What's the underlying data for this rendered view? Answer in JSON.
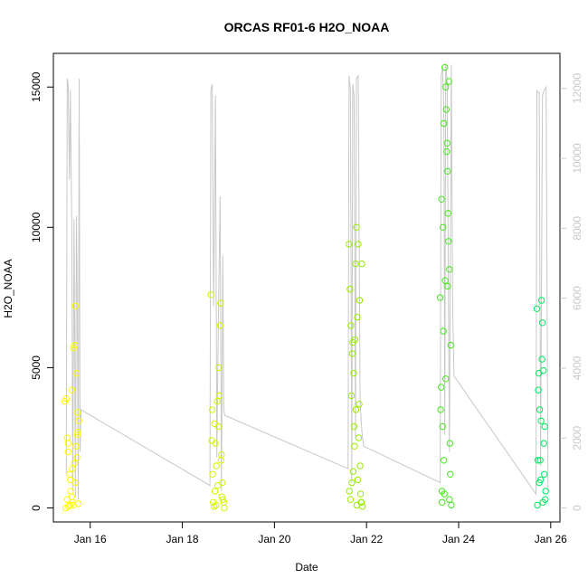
{
  "chart_data": {
    "type": "scatter",
    "title": "ORCAS RF01-6 H2O_NOAA",
    "xlabel": "Date",
    "ylabel": "H2O_NOAA",
    "xlim": [
      15.2,
      26.2
    ],
    "ylim": [
      -500,
      16200
    ],
    "ylim_right": [
      -400,
      13000
    ],
    "x_ticks": [
      {
        "value": 16,
        "label": "Jan 16"
      },
      {
        "value": 18,
        "label": "Jan 18"
      },
      {
        "value": 20,
        "label": "Jan 20"
      },
      {
        "value": 22,
        "label": "Jan 22"
      },
      {
        "value": 24,
        "label": "Jan 24"
      },
      {
        "value": 26,
        "label": "Jan 26"
      }
    ],
    "y_ticks": [
      {
        "value": 0,
        "label": "0"
      },
      {
        "value": 5000,
        "label": "5000"
      },
      {
        "value": 10000,
        "label": "10000"
      },
      {
        "value": 15000,
        "label": "15000"
      }
    ],
    "y_ticks_right": [
      {
        "value": 0,
        "label": "0"
      },
      {
        "value": 2000,
        "label": "2000"
      },
      {
        "value": 4000,
        "label": "4000"
      },
      {
        "value": 6000,
        "label": "6000"
      },
      {
        "value": 8000,
        "label": "8000"
      },
      {
        "value": 10000,
        "label": "10000"
      },
      {
        "value": 12000,
        "label": "12000"
      }
    ],
    "colors": {
      "line": "#c8c8c8",
      "flight1": "#ffff00",
      "flight2": "#d4f500",
      "flight3": "#99ec00",
      "flight4": "#44e81a",
      "flight5": "#00e860"
    },
    "line_series": {
      "name": "",
      "x": [
        15.48,
        15.5,
        15.52,
        15.55,
        15.57,
        15.6,
        15.62,
        15.65,
        15.68,
        15.7,
        15.72,
        15.74,
        15.76,
        15.78,
        15.8,
        18.6,
        18.62,
        18.65,
        18.68,
        18.72,
        18.75,
        18.78,
        18.82,
        18.85,
        18.88,
        18.9,
        18.92,
        21.6,
        21.62,
        21.65,
        21.68,
        21.7,
        21.73,
        21.76,
        21.78,
        21.82,
        21.86,
        21.9,
        21.94,
        23.6,
        23.62,
        23.65,
        23.68,
        23.7,
        23.72,
        23.75,
        23.8,
        23.84,
        23.87,
        23.9,
        25.68,
        25.7,
        25.72,
        25.75,
        25.78,
        25.82,
        25.86,
        25.9,
        25.94
      ],
      "y": [
        1200,
        15300,
        15100,
        11700,
        14900,
        9900,
        600,
        10300,
        400,
        10400,
        7000,
        300,
        15300,
        2000,
        3500,
        800,
        14900,
        15100,
        7200,
        14700,
        1800,
        6500,
        11100,
        600,
        9000,
        3500,
        3300,
        1400,
        15400,
        14900,
        900,
        15100,
        14700,
        2500,
        15300,
        15400,
        3700,
        2700,
        2200,
        900,
        15400,
        15700,
        14200,
        2600,
        15800,
        15200,
        2000,
        15800,
        7100,
        4700,
        500,
        14900,
        14800,
        14800,
        1500,
        14700,
        14900,
        15000,
        600
      ]
    },
    "point_series": [
      {
        "name": "",
        "color_key": "flight1",
        "x": [
          15.45,
          15.48,
          15.5,
          15.52,
          15.55,
          15.57,
          15.6,
          15.62,
          15.64,
          15.66,
          15.68,
          15.7,
          15.72,
          15.74,
          15.47,
          15.53,
          15.58,
          15.63,
          15.69,
          15.73,
          15.5,
          15.56,
          15.61,
          15.67,
          15.71,
          15.75,
          15.52,
          15.6,
          15.66,
          15.72
        ],
        "y": [
          3800,
          3900,
          2500,
          2300,
          1200,
          1000,
          400,
          200,
          5700,
          5800,
          7200,
          4800,
          3400,
          150,
          0,
          50,
          600,
          100,
          2200,
          2700,
          300,
          100,
          1400,
          900,
          1800,
          3100,
          2000,
          4200,
          1600,
          2600
        ]
      },
      {
        "name": "",
        "color_key": "flight2",
        "x": [
          18.62,
          18.65,
          18.67,
          18.7,
          18.72,
          18.74,
          18.77,
          18.8,
          18.82,
          18.85,
          18.87,
          18.9,
          18.64,
          18.69,
          18.73,
          18.76,
          18.79,
          18.84,
          18.88,
          18.91,
          18.66,
          18.71,
          18.78,
          18.83,
          18.86
        ],
        "y": [
          7600,
          3500,
          200,
          3000,
          2300,
          1500,
          800,
          4000,
          6500,
          1900,
          900,
          200,
          2400,
          50,
          100,
          3800,
          5000,
          1700,
          300,
          0,
          1200,
          600,
          2900,
          7300,
          400
        ]
      },
      {
        "name": "",
        "color_key": "flight3",
        "x": [
          21.62,
          21.64,
          21.66,
          21.68,
          21.7,
          21.72,
          21.74,
          21.76,
          21.78,
          21.8,
          21.82,
          21.84,
          21.86,
          21.88,
          21.9,
          21.65,
          21.69,
          21.73,
          21.77,
          21.81,
          21.85,
          21.89,
          21.63,
          21.67,
          21.71,
          21.75,
          21.79,
          21.83,
          21.87,
          21.91
        ],
        "y": [
          9400,
          7800,
          6500,
          900,
          5900,
          4800,
          2200,
          8700,
          10000,
          6800,
          9400,
          3700,
          1500,
          200,
          8700,
          300,
          5500,
          2900,
          3500,
          1000,
          7400,
          200,
          600,
          4000,
          1300,
          6000,
          100,
          2500,
          500,
          50
        ]
      },
      {
        "name": "",
        "color_key": "flight4",
        "x": [
          23.6,
          23.62,
          23.64,
          23.66,
          23.68,
          23.7,
          23.72,
          23.74,
          23.76,
          23.78,
          23.8,
          23.82,
          23.63,
          23.67,
          23.71,
          23.75,
          23.79,
          23.83,
          23.61,
          23.65,
          23.69,
          23.73,
          23.77,
          23.81,
          23.64,
          23.68,
          23.72,
          23.76,
          23.8,
          23.84
        ],
        "y": [
          7500,
          4300,
          200,
          10000,
          13700,
          15700,
          15000,
          12700,
          12000,
          9500,
          8500,
          1200,
          11000,
          6300,
          8100,
          13000,
          15200,
          5800,
          3500,
          2900,
          500,
          14200,
          10500,
          2300,
          600,
          1700,
          4600,
          7900,
          300,
          100
        ]
      },
      {
        "name": "",
        "color_key": "flight5",
        "x": [
          25.7,
          25.72,
          25.74,
          25.76,
          25.78,
          25.8,
          25.82,
          25.84,
          25.86,
          25.88,
          25.73,
          25.77,
          25.81,
          25.85,
          25.89,
          25.71,
          25.75,
          25.79,
          25.83,
          25.87
        ],
        "y": [
          7100,
          1700,
          4800,
          3500,
          1000,
          7400,
          6600,
          4900,
          1200,
          300,
          4200,
          1700,
          5300,
          2300,
          600,
          100,
          900,
          3100,
          200,
          2900
        ]
      }
    ]
  }
}
